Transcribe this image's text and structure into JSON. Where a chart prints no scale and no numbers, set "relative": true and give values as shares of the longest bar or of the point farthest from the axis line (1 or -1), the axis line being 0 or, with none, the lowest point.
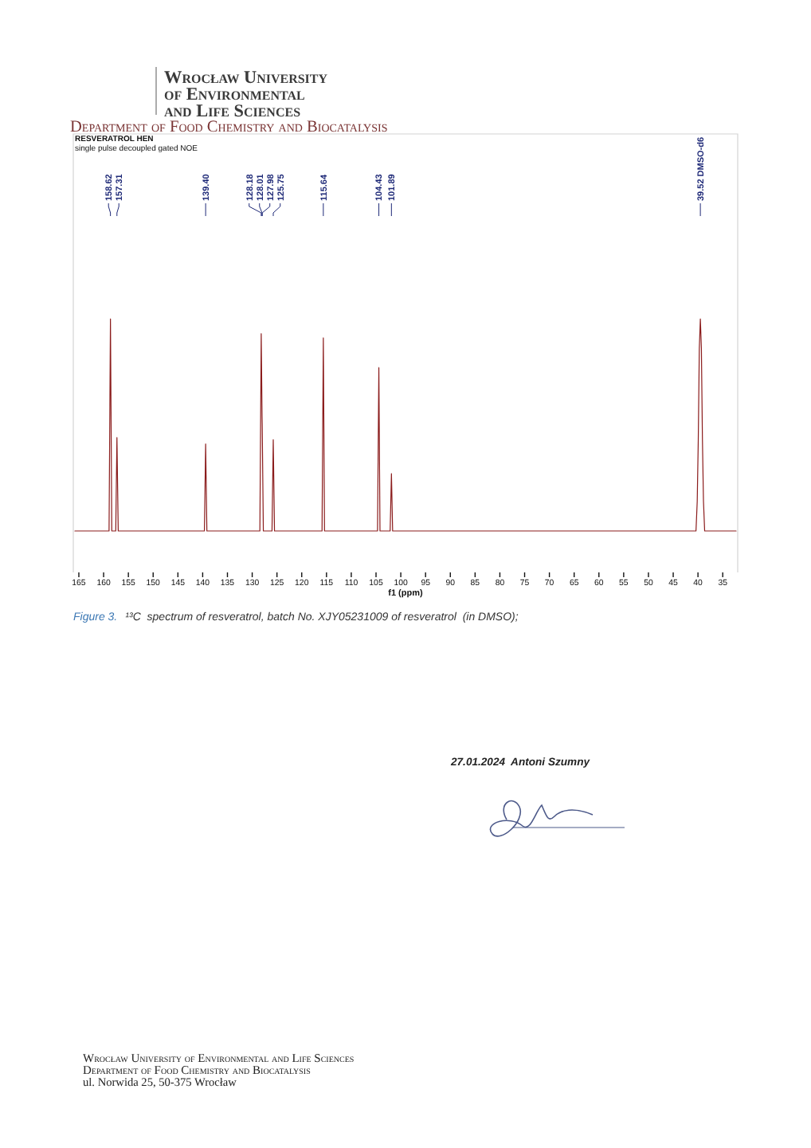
{
  "chart_data": {
    "type": "line",
    "title": "RESVERATROL HEN",
    "subtitle": "single pulse decoupled gated NOE",
    "xlabel": "f1 (ppm)",
    "relative": true,
    "xlim": [
      165.8,
      32.3
    ],
    "xticks": [
      165,
      160,
      155,
      150,
      145,
      140,
      135,
      130,
      125,
      120,
      115,
      110,
      105,
      100,
      95,
      90,
      85,
      80,
      75,
      70,
      65,
      60,
      55,
      50,
      45,
      40,
      35
    ],
    "series": [
      {
        "color": "#8b1c1c",
        "x": [
          165.8,
          158.9,
          158.62,
          158.35,
          157.55,
          157.31,
          157.05,
          139.65,
          139.4,
          139.15,
          128.45,
          128.18,
          128.01,
          127.98,
          127.75,
          126.0,
          125.75,
          125.5,
          115.9,
          115.64,
          115.4,
          104.7,
          104.43,
          104.2,
          102.15,
          101.89,
          101.65,
          40.4,
          40.15,
          39.94,
          39.73,
          39.52,
          39.31,
          39.1,
          38.89,
          38.65,
          32.3
        ],
        "values": [
          0,
          0,
          1,
          0,
          0,
          0.44,
          0,
          0,
          0.41,
          0,
          0,
          0.93,
          0.54,
          0.5,
          0,
          0,
          0.43,
          0,
          0,
          0.91,
          0,
          0,
          0.77,
          0,
          0,
          0.27,
          0,
          0,
          0.14,
          0.43,
          0.86,
          1,
          0.86,
          0.43,
          0.14,
          0,
          0
        ]
      }
    ],
    "annotations": [
      "Wrocław University",
      "of Environmental",
      "and Life Sciences",
      "Department of Food Chemistry and Biocatalysis",
      {
        "text": "158.62",
        "x": 158.62
      },
      {
        "text": "157.31",
        "x": 157.31
      },
      {
        "text": "139.40",
        "x": 139.4
      },
      {
        "text": "128.18",
        "x": 128.18
      },
      {
        "text": "128.01",
        "x": 128.01
      },
      {
        "text": "127.98",
        "x": 127.98
      },
      {
        "text": "125.75",
        "x": 125.75
      },
      {
        "text": "115.64",
        "x": 115.64
      },
      {
        "text": "104.43",
        "x": 104.43
      },
      {
        "text": "101.89",
        "x": 101.89
      },
      {
        "text": "39.52 DMSO-d6",
        "x": 39.52
      },
      "Figure 3.",
      "¹³C  spectrum of resveratrol, batch No. XJY05231009 of resveratrol  (in DMSO);",
      "27.01.2024  Antoni Szumny",
      "Wrocław University of Environmental and Life Sciences",
      "Department of Food Chemistry and Biocatalysis",
      "ul. Norwida 25, 50-375 Wrocław"
    ]
  }
}
